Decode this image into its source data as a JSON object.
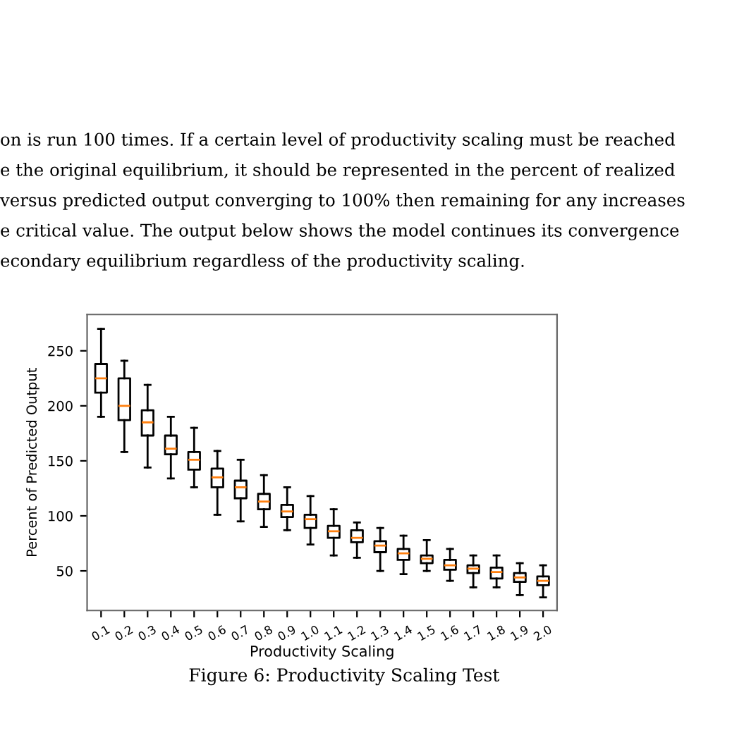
{
  "chart_data": {
    "type": "box",
    "xlabel": "Productivity Scaling",
    "ylabel": "Percent of Predicted Output",
    "categories": [
      "0.1",
      "0.2",
      "0.3",
      "0.4",
      "0.5",
      "0.6",
      "0.7",
      "0.8",
      "0.9",
      "1.0",
      "1.1",
      "1.2",
      "1.3",
      "1.4",
      "1.5",
      "1.6",
      "1.7",
      "1.8",
      "1.9",
      "2.0"
    ],
    "boxes": [
      {
        "low": 190,
        "q1": 212,
        "median": 225,
        "q3": 238,
        "high": 270
      },
      {
        "low": 158,
        "q1": 187,
        "median": 200,
        "q3": 225,
        "high": 241
      },
      {
        "low": 144,
        "q1": 173,
        "median": 185,
        "q3": 196,
        "high": 219
      },
      {
        "low": 134,
        "q1": 156,
        "median": 161,
        "q3": 173,
        "high": 190
      },
      {
        "low": 126,
        "q1": 142,
        "median": 151,
        "q3": 158,
        "high": 180
      },
      {
        "low": 101,
        "q1": 126,
        "median": 135,
        "q3": 143,
        "high": 159
      },
      {
        "low": 95,
        "q1": 116,
        "median": 126,
        "q3": 132,
        "high": 151
      },
      {
        "low": 90,
        "q1": 106,
        "median": 113,
        "q3": 120,
        "high": 137
      },
      {
        "low": 87,
        "q1": 99,
        "median": 104,
        "q3": 110,
        "high": 126
      },
      {
        "low": 74,
        "q1": 89,
        "median": 97,
        "q3": 101,
        "high": 118
      },
      {
        "low": 64,
        "q1": 80,
        "median": 86,
        "q3": 91,
        "high": 106
      },
      {
        "low": 62,
        "q1": 76,
        "median": 80,
        "q3": 87,
        "high": 94
      },
      {
        "low": 50,
        "q1": 67,
        "median": 73,
        "q3": 77,
        "high": 89
      },
      {
        "low": 47,
        "q1": 60,
        "median": 66,
        "q3": 70,
        "high": 82
      },
      {
        "low": 50,
        "q1": 57,
        "median": 61,
        "q3": 64,
        "high": 78
      },
      {
        "low": 41,
        "q1": 51,
        "median": 55,
        "q3": 60,
        "high": 70
      },
      {
        "low": 35,
        "q1": 48,
        "median": 52,
        "q3": 55,
        "high": 64
      },
      {
        "low": 35,
        "q1": 43,
        "median": 49,
        "q3": 53,
        "high": 64
      },
      {
        "low": 28,
        "q1": 40,
        "median": 44,
        "q3": 48,
        "high": 57
      },
      {
        "low": 26,
        "q1": 37,
        "median": 41,
        "q3": 45,
        "high": 55
      }
    ],
    "color": "#000000",
    "ylim": [
      14,
      283
    ],
    "yticks": [
      50,
      100,
      150,
      200,
      250
    ],
    "grid": false,
    "annotations": [
      "on is run 100 times. If a certain level of productivity scaling must be reached",
      "e the original equilibrium, it should be represented in the percent of realized",
      "versus predicted output converging to 100% then remaining for any increases",
      "e critical value. The output below shows the model continues its convergence",
      "econdary equilibrium regardless of the productivity scaling.",
      "Figure 6: Productivity Scaling Test"
    ]
  }
}
